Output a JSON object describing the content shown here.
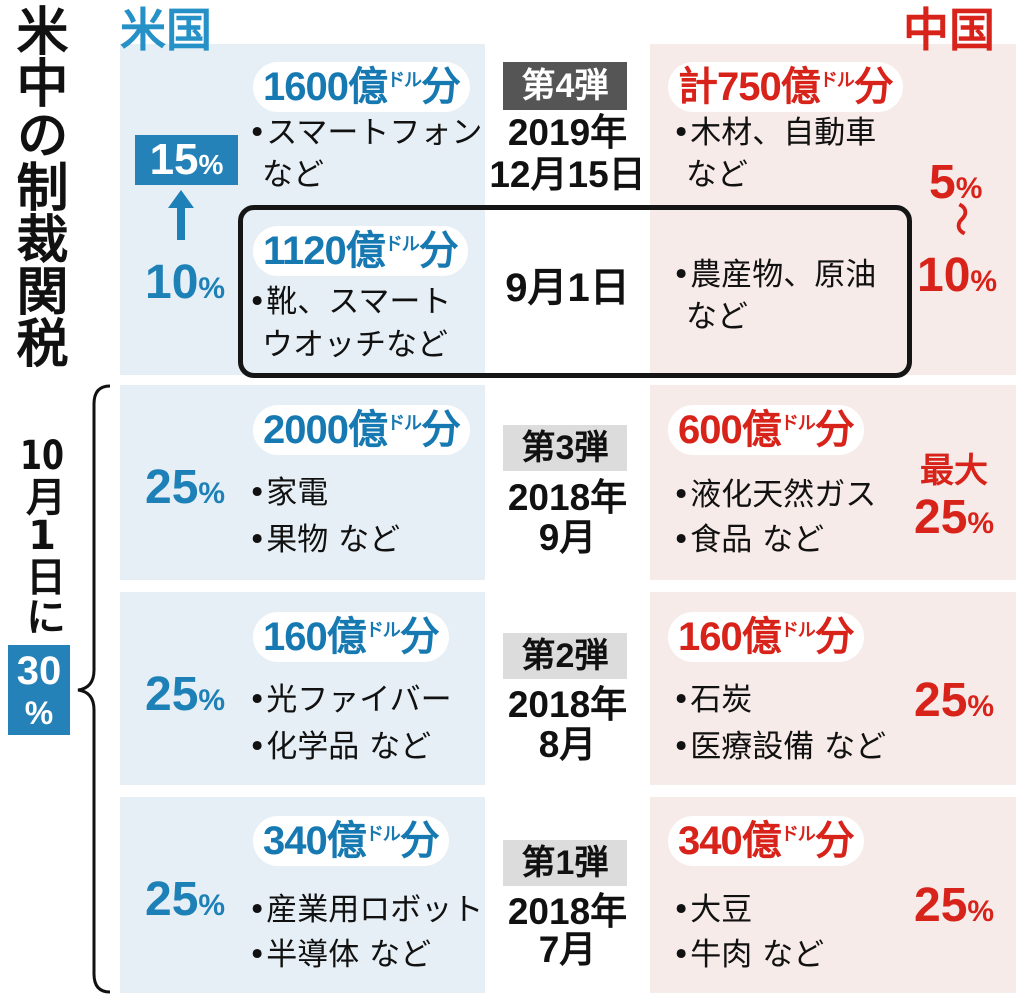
{
  "title": "米中の制裁関税",
  "headers": {
    "us": "米国",
    "china": "中国"
  },
  "colors": {
    "us": "#1d80b7",
    "china": "#d8231b",
    "us_panel": "#e6eff5",
    "china_panel": "#f6ebe8"
  },
  "us_rate_change": {
    "from": "10%",
    "to": "15%"
  },
  "china_rate_range": {
    "from": "5%",
    "separator": "〜",
    "to": "10%"
  },
  "side_note": {
    "text": "10月1日に",
    "rate_number": "30",
    "rate_unit": "%"
  },
  "rounds": [
    {
      "label": "第4弾",
      "date_lines": [
        "2019年",
        "12月15日"
      ],
      "us": {
        "amount": "1600億ドル分",
        "items": [
          "•スマートフォン",
          "など"
        ]
      },
      "china": {
        "amount": "計750億ドル分",
        "items": [
          "•木材、自動車",
          "など"
        ]
      }
    },
    {
      "date_lines": [
        "9月1日"
      ],
      "us": {
        "amount": "1120億ドル分",
        "items": [
          "•靴、スマート",
          "ウオッチなど"
        ]
      },
      "china": {
        "items": [
          "•農産物、原油",
          "など"
        ]
      }
    },
    {
      "label": "第3弾",
      "date_lines": [
        "2018年",
        "9月"
      ],
      "us": {
        "amount": "2000億ドル分",
        "items": [
          "•家電",
          "•果物 など"
        ],
        "rate": "25%"
      },
      "china": {
        "amount": "600億ドル分",
        "items": [
          "•液化天然ガス",
          "•食品 など"
        ],
        "rate_prefix": "最大",
        "rate": "25%"
      }
    },
    {
      "label": "第2弾",
      "date_lines": [
        "2018年",
        "8月"
      ],
      "us": {
        "amount": "160億ドル分",
        "items": [
          "•光ファイバー",
          "•化学品 など"
        ],
        "rate": "25%"
      },
      "china": {
        "amount": "160億ドル分",
        "items": [
          "•石炭",
          "•医療設備 など"
        ],
        "rate": "25%"
      }
    },
    {
      "label": "第1弾",
      "date_lines": [
        "2018年",
        "7月"
      ],
      "us": {
        "amount": "340億ドル分",
        "items": [
          "•産業用ロボット",
          "•半導体 など"
        ],
        "rate": "25%"
      },
      "china": {
        "amount": "340億ドル分",
        "items": [
          "•大豆",
          "•牛肉 など"
        ],
        "rate": "25%"
      }
    }
  ]
}
